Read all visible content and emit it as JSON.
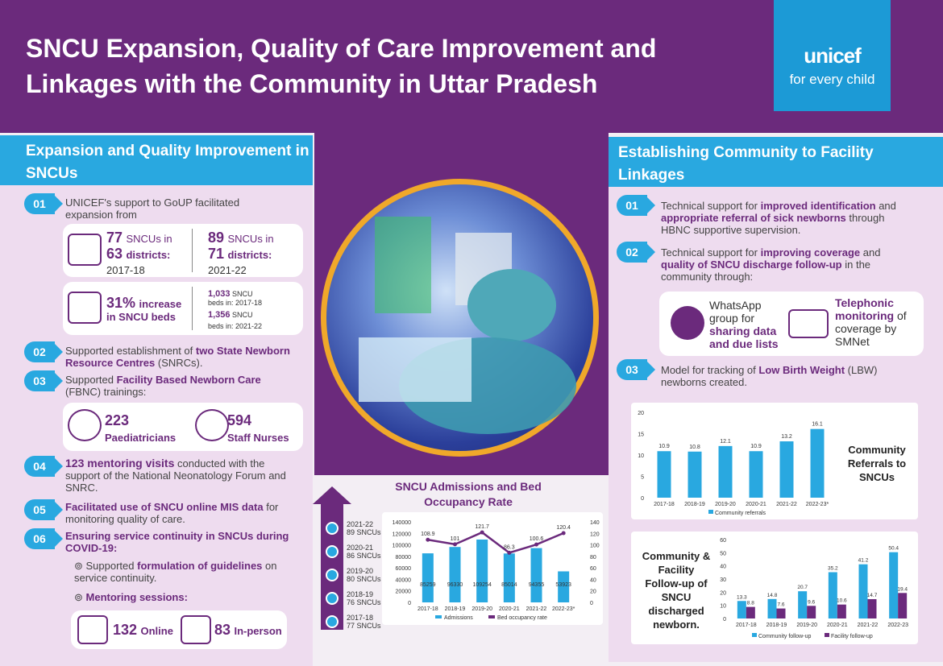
{
  "header": {
    "title": "SNCU Expansion, Quality of Care Improvement and Linkages with the Community in Uttar Pradesh",
    "logo_text": "unicef",
    "logo_tagline": "for every child"
  },
  "left": {
    "banner": "Expansion and Quality Improvement in SNCUs",
    "items": [
      {
        "num": "01",
        "text": "UNICEF's support to GoUP facilitated expansion from"
      },
      {
        "num": "02",
        "pre": "Supported establishment of ",
        "bold": "two State Newborn Resource Centres",
        "post": " (SNRCs)."
      },
      {
        "num": "03",
        "pre": "Supported ",
        "bold": "Facility Based Newborn Care",
        "post": " (FBNC) trainings:"
      },
      {
        "num": "04",
        "bold": "123 mentoring visits",
        "post": " conducted with the support of the National Neonatology Forum and SNRC."
      },
      {
        "num": "05",
        "bold": "Facilitated use of SNCU online MIS data",
        "post": " for monitoring quality of care."
      },
      {
        "num": "06",
        "bold": "Ensuring service continuity in SNCUs during COVID-19:"
      }
    ],
    "card1": {
      "a_num": "77",
      "a_unit": "SNCUs in",
      "a_num2": "63",
      "a_unit2": "districts:",
      "a_year": "2017-18",
      "b_num": "89",
      "b_unit": "SNCUs in",
      "b_num2": "71",
      "b_unit2": "districts:",
      "b_year": "2021-22"
    },
    "card2": {
      "pct": "31%",
      "pct_txt": "increase",
      "pct_txt2": "in SNCU beds",
      "beds1_num": "1,033",
      "beds1_unit": "SNCU",
      "beds1_txt": "beds in: 2017-18",
      "beds2_num": "1,356",
      "beds2_unit": "SNCU",
      "beds2_txt": "beds in: 2021-22"
    },
    "card3": {
      "a_num": "223",
      "a_label": "Paediatricians",
      "b_num": "594",
      "b_label": "Staff Nurses"
    },
    "bullet1_pre": "Supported ",
    "bullet1_bold": "formulation of guidelines",
    "bullet1_post": " on service continuity.",
    "bullet2": "Mentoring sessions:",
    "card4": {
      "a_num": "132",
      "a_label": "Online",
      "b_num": "83",
      "b_label": "In-person"
    }
  },
  "right": {
    "banner": "Establishing Community to Facility Linkages",
    "items": [
      {
        "num": "01",
        "pre": "Technical support for ",
        "bold": "improved identification",
        "mid": " and ",
        "bold2": "appropriate referral of sick newborns",
        "post": " through HBNC supportive supervision."
      },
      {
        "num": "02",
        "pre": "Technical support for ",
        "bold": "improving coverage",
        "mid": " and ",
        "bold2": "quality of SNCU discharge follow-up",
        "post": " in the community through:"
      },
      {
        "num": "03",
        "pre": "Model for tracking of ",
        "bold": "Low Birth Weight",
        "post": " (LBW) newborns created."
      }
    ],
    "card": {
      "wa1": "WhatsApp group for",
      "wa2": "sharing data and due lists",
      "tel1": "Telephonic monitoring",
      "tel2": " of coverage by SMNet"
    }
  },
  "timeline": [
    {
      "year": "2021-22",
      "count": "89 SNCUs"
    },
    {
      "year": "2020-21",
      "count": "86 SNCUs"
    },
    {
      "year": "2019-20",
      "count": "80 SNCUs"
    },
    {
      "year": "2018-19",
      "count": "76 SNCUs"
    },
    {
      "year": "2017-18",
      "count": "77 SNCUs"
    }
  ],
  "chart_data": [
    {
      "type": "bar",
      "title": "SNCU Admissions and Bed Occupancy Rate",
      "categories": [
        "2017-18",
        "2018-19",
        "2019-20",
        "2020-21",
        "2021-22",
        "2022-23*"
      ],
      "series": [
        {
          "name": "Admissions",
          "values": [
            85259,
            96330,
            109254,
            85014,
            94355,
            53923
          ],
          "axis": "left",
          "type": "bar"
        },
        {
          "name": "Bed occupancy rate",
          "values": [
            108.9,
            101,
            121.7,
            86.3,
            100.6,
            120.4
          ],
          "axis": "right",
          "type": "line"
        }
      ],
      "ylim": [
        0,
        140000
      ],
      "y2lim": [
        0,
        140
      ],
      "yticks": [
        "0",
        "20000",
        "40000",
        "60000",
        "80000",
        "100000",
        "120000",
        "140000"
      ],
      "y2ticks": [
        "0",
        "20",
        "40",
        "60",
        "80",
        "100",
        "120",
        "140"
      ]
    },
    {
      "type": "bar",
      "title": "Community Referrals to SNCUs",
      "categories": [
        "2017-18",
        "2018-19",
        "2019-20",
        "2020-21",
        "2021-22",
        "2022-23*"
      ],
      "series": [
        {
          "name": "Community referrals",
          "values": [
            10.9,
            10.8,
            12.1,
            10.9,
            13.2,
            16.1
          ]
        }
      ],
      "ylim": [
        0,
        20
      ],
      "yticks": [
        "0",
        "5",
        "10",
        "15",
        "20"
      ]
    },
    {
      "type": "bar",
      "title": "Community & Facility Follow-up of SNCU discharged newborn.",
      "categories": [
        "2017-18",
        "2018-19",
        "2019-20",
        "2020-21",
        "2021-22",
        "2022-23"
      ],
      "series": [
        {
          "name": "Community follow-up",
          "values": [
            13.3,
            14.8,
            20.7,
            35.2,
            41.2,
            50.4
          ]
        },
        {
          "name": "Facility follow-up",
          "values": [
            8.8,
            7.6,
            9.6,
            10.6,
            14.7,
            19.4
          ]
        }
      ],
      "ylim": [
        0,
        60
      ],
      "yticks": [
        "0",
        "10",
        "20",
        "30",
        "40",
        "50",
        "60"
      ]
    }
  ],
  "colors": {
    "purple": "#6b2a7c",
    "blue": "#29a8e0",
    "unicef_blue": "#1c9ad6",
    "accent": "#f0a82a"
  }
}
